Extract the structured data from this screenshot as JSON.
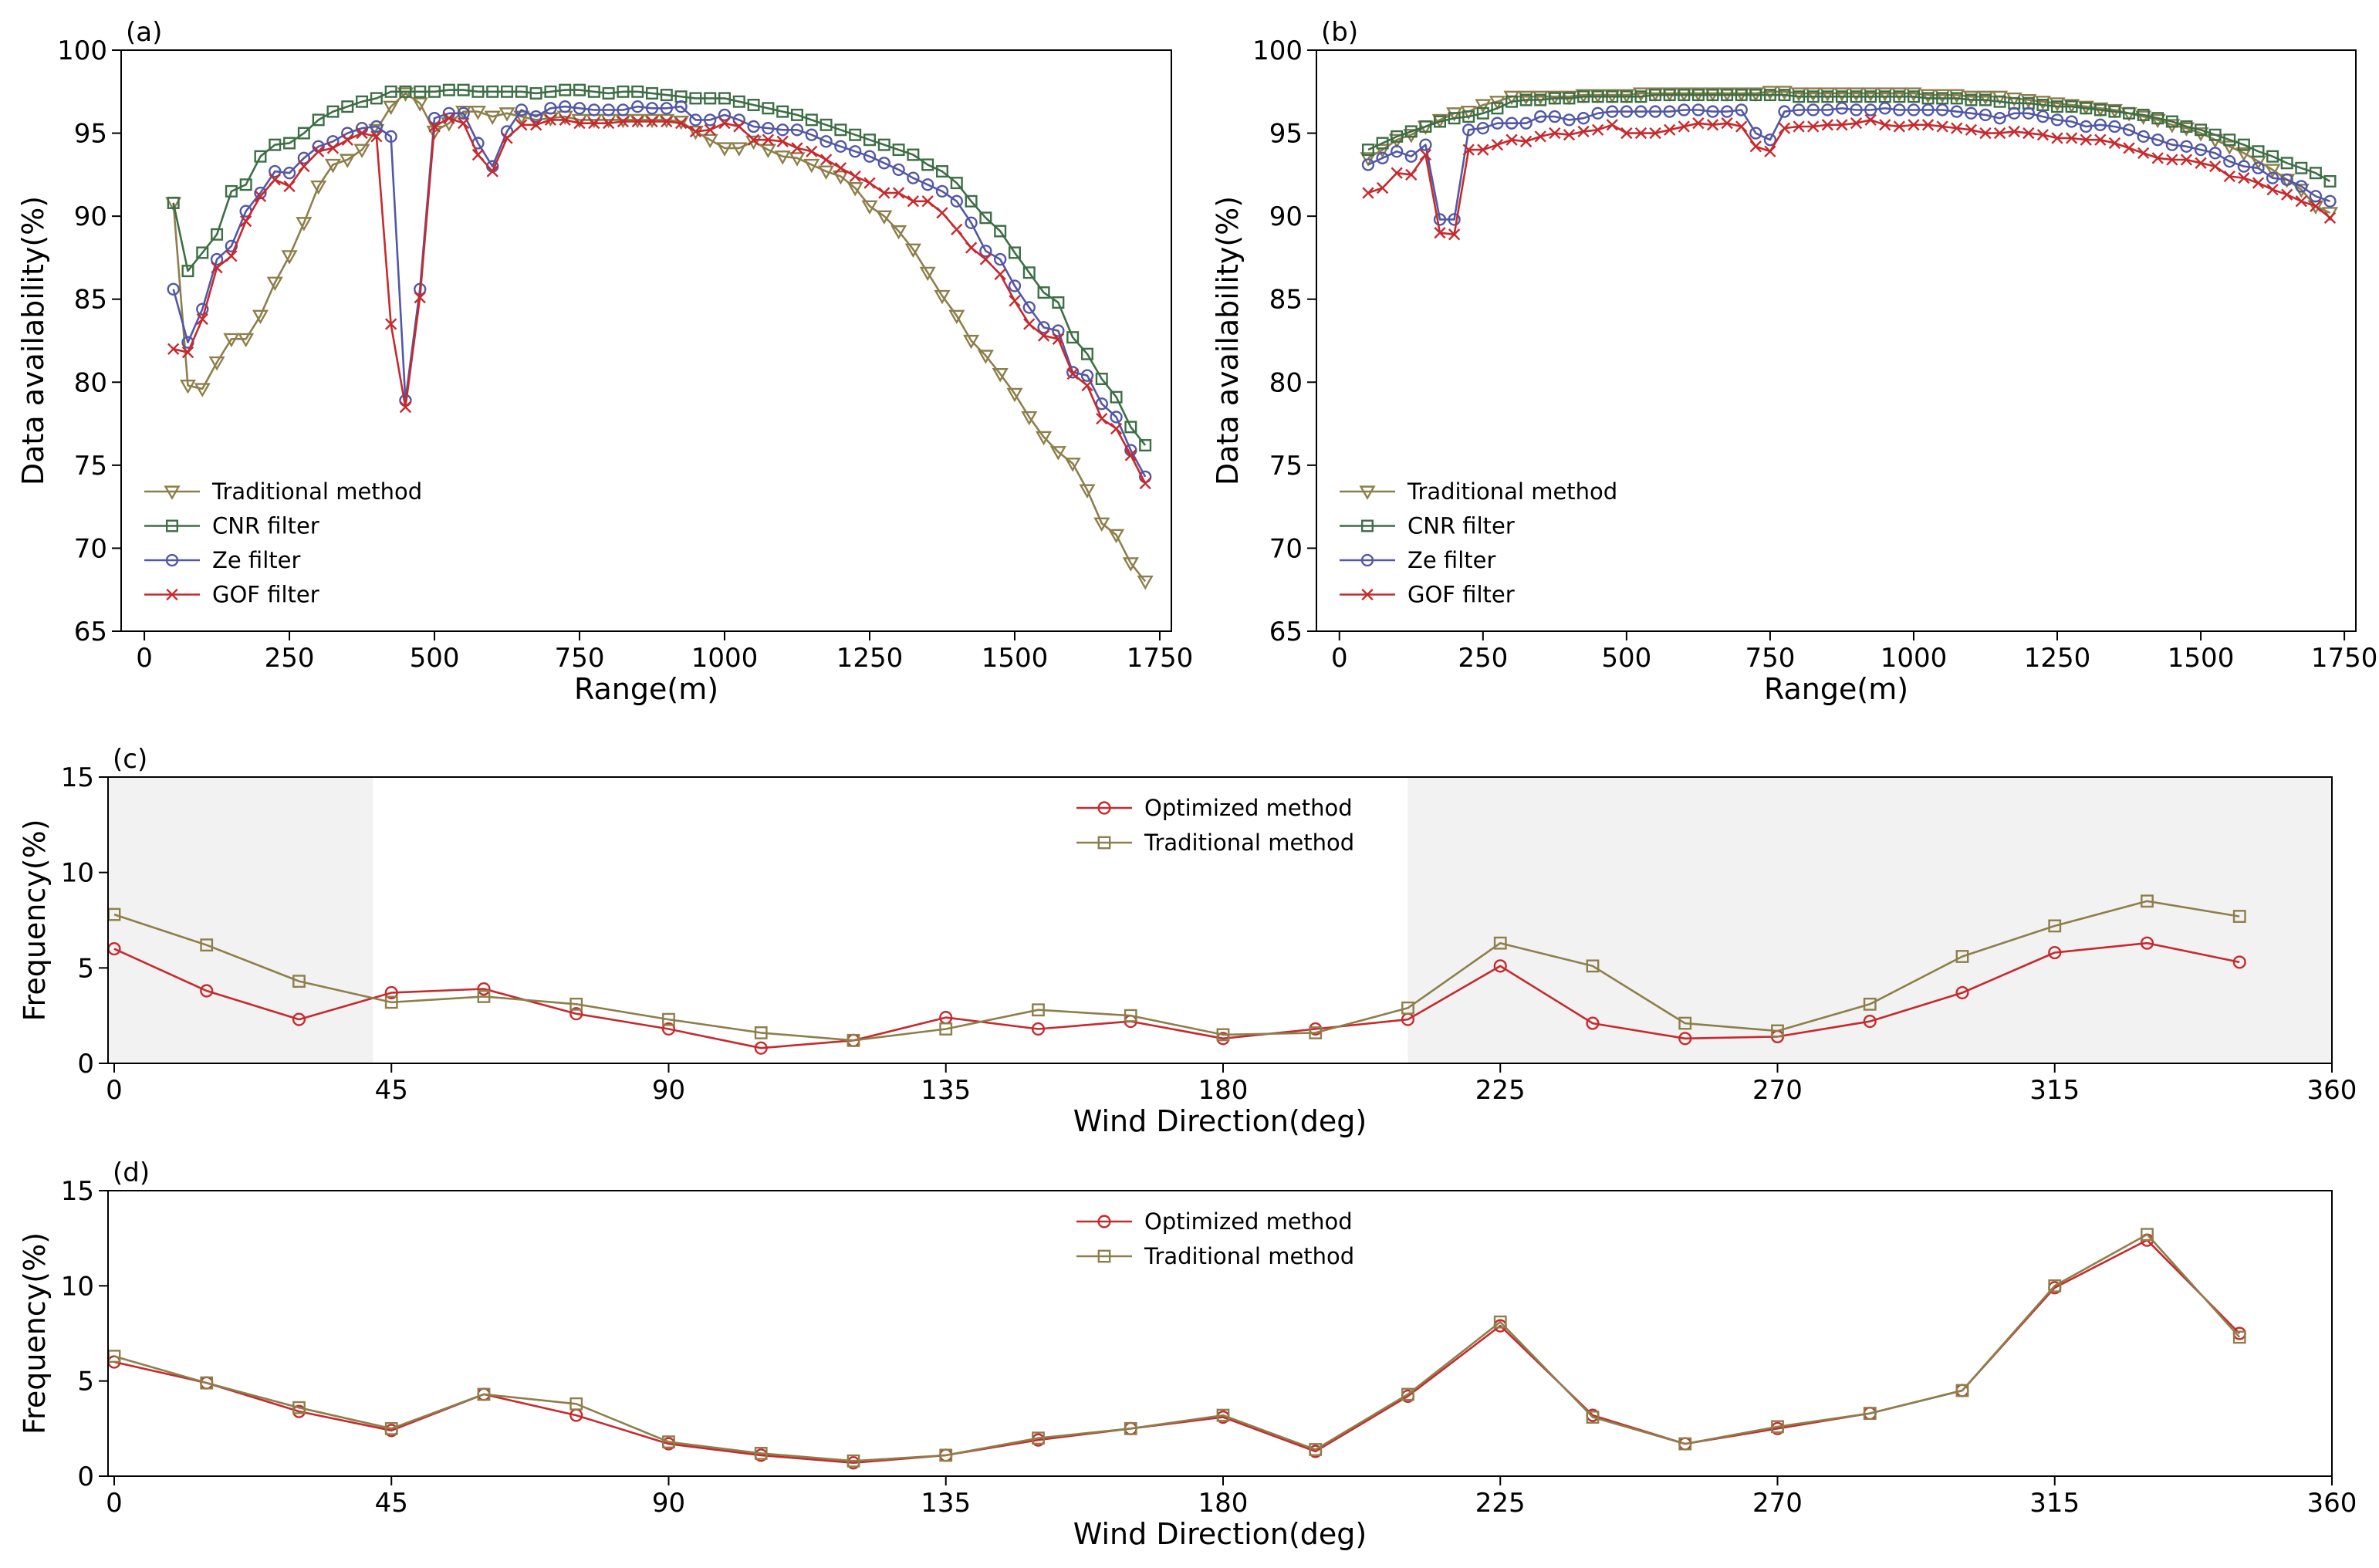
{
  "colors": {
    "traditional": "#8d7f4b",
    "cnr": "#3d6e45",
    "ze": "#5257a6",
    "gof": "#c62a2e",
    "shade": "#f2f2f2"
  },
  "chart_data": [
    {
      "panel": "(a)",
      "type": "line",
      "xlabel": "Range(m)",
      "ylabel": "Data availability(%)",
      "xlim": [
        -40,
        1770
      ],
      "ylim": [
        65,
        100
      ],
      "xticks": [
        0,
        250,
        500,
        750,
        1000,
        1250,
        1500,
        1750
      ],
      "yticks": [
        65,
        70,
        75,
        80,
        85,
        90,
        95,
        100
      ],
      "legend_position": "lower left",
      "grid": false,
      "x": [
        50,
        75,
        100,
        125,
        150,
        175,
        200,
        225,
        250,
        275,
        300,
        325,
        350,
        375,
        400,
        425,
        450,
        475,
        500,
        525,
        550,
        575,
        600,
        625,
        650,
        675,
        700,
        725,
        750,
        775,
        800,
        825,
        850,
        875,
        900,
        925,
        950,
        975,
        1000,
        1025,
        1050,
        1075,
        1100,
        1125,
        1150,
        1175,
        1200,
        1225,
        1250,
        1275,
        1300,
        1325,
        1350,
        1375,
        1400,
        1425,
        1450,
        1475,
        1500,
        1525,
        1550,
        1575,
        1600,
        1625,
        1650,
        1675,
        1700,
        1725
      ],
      "series": [
        {
          "name": "Traditional method",
          "marker": "triangle-down",
          "color_key": "traditional",
          "values": [
            90.8,
            79.8,
            79.6,
            81.2,
            82.6,
            82.6,
            84.0,
            86.0,
            87.6,
            89.6,
            91.8,
            93.1,
            93.4,
            94.0,
            95.2,
            96.6,
            97.4,
            96.8,
            95.1,
            95.6,
            96.3,
            96.3,
            96.0,
            96.2,
            96.0,
            95.8,
            95.9,
            96.0,
            95.8,
            95.8,
            95.8,
            95.8,
            95.8,
            95.8,
            95.8,
            95.7,
            95.1,
            94.6,
            94.1,
            94.1,
            94.5,
            94.0,
            93.6,
            93.5,
            93.1,
            92.7,
            92.4,
            91.7,
            90.6,
            90.0,
            89.1,
            88.0,
            86.6,
            85.2,
            84.0,
            82.5,
            81.6,
            80.5,
            79.3,
            77.9,
            76.7,
            75.8,
            75.1,
            73.5,
            71.5,
            70.8,
            69.1,
            68.0
          ]
        },
        {
          "name": "CNR filter",
          "marker": "square",
          "color_key": "cnr",
          "values": [
            90.8,
            86.7,
            87.8,
            88.9,
            91.5,
            91.9,
            93.6,
            94.3,
            94.4,
            95.0,
            95.8,
            96.3,
            96.6,
            96.9,
            97.1,
            97.5,
            97.5,
            97.5,
            97.5,
            97.6,
            97.6,
            97.5,
            97.5,
            97.5,
            97.5,
            97.4,
            97.5,
            97.6,
            97.6,
            97.5,
            97.4,
            97.5,
            97.5,
            97.4,
            97.3,
            97.2,
            97.1,
            97.1,
            97.1,
            96.9,
            96.7,
            96.5,
            96.3,
            96.1,
            95.8,
            95.5,
            95.2,
            94.9,
            94.6,
            94.3,
            94.0,
            93.7,
            93.1,
            92.7,
            92.0,
            90.9,
            89.9,
            89.1,
            87.8,
            86.6,
            85.4,
            84.8,
            82.7,
            81.7,
            80.2,
            79.1,
            77.3,
            76.2
          ]
        },
        {
          "name": "Ze filter",
          "marker": "circle",
          "color_key": "ze",
          "values": [
            85.6,
            82.4,
            84.4,
            87.4,
            88.2,
            90.3,
            91.4,
            92.7,
            92.6,
            93.5,
            94.2,
            94.5,
            95.0,
            95.3,
            95.4,
            94.8,
            78.9,
            85.6,
            95.9,
            96.2,
            96.2,
            94.4,
            93.0,
            95.1,
            96.4,
            96.0,
            96.5,
            96.6,
            96.5,
            96.4,
            96.4,
            96.4,
            96.6,
            96.5,
            96.5,
            96.6,
            95.8,
            95.8,
            96.1,
            95.8,
            95.4,
            95.3,
            95.2,
            95.2,
            94.9,
            94.5,
            94.2,
            93.9,
            93.6,
            93.2,
            92.8,
            92.3,
            91.9,
            91.5,
            90.9,
            89.6,
            87.9,
            87.4,
            85.8,
            84.5,
            83.3,
            83.1,
            80.6,
            80.4,
            78.7,
            77.9,
            75.9,
            74.3
          ]
        },
        {
          "name": "GOF filter",
          "marker": "x",
          "color_key": "gof",
          "values": [
            82.0,
            81.8,
            83.8,
            86.9,
            87.6,
            89.7,
            91.2,
            92.2,
            91.8,
            93.0,
            93.9,
            94.1,
            94.6,
            95.0,
            94.8,
            83.5,
            78.5,
            85.1,
            95.4,
            95.9,
            95.6,
            93.7,
            92.7,
            94.7,
            95.5,
            95.5,
            95.8,
            95.8,
            95.6,
            95.6,
            95.6,
            95.7,
            95.7,
            95.7,
            95.7,
            95.6,
            95.1,
            95.2,
            95.6,
            95.4,
            94.6,
            94.6,
            94.5,
            94.1,
            93.9,
            93.4,
            92.9,
            92.4,
            92.0,
            91.4,
            91.4,
            90.9,
            90.9,
            90.2,
            89.2,
            88.1,
            87.4,
            86.5,
            84.9,
            83.5,
            82.8,
            82.6,
            80.5,
            79.8,
            77.8,
            77.2,
            75.6,
            73.9
          ]
        }
      ]
    },
    {
      "panel": "(b)",
      "type": "line",
      "xlabel": "Range(m)",
      "ylabel": "Data availability(%)",
      "xlim": [
        -40,
        1770
      ],
      "ylim": [
        65,
        100
      ],
      "xticks": [
        0,
        250,
        500,
        750,
        1000,
        1250,
        1500,
        1750
      ],
      "yticks": [
        65,
        70,
        75,
        80,
        85,
        90,
        95,
        100
      ],
      "legend_position": "lower left",
      "grid": false,
      "x": [
        50,
        75,
        100,
        125,
        150,
        175,
        200,
        225,
        250,
        275,
        300,
        325,
        350,
        375,
        400,
        425,
        450,
        475,
        500,
        525,
        550,
        575,
        600,
        625,
        650,
        675,
        700,
        725,
        750,
        775,
        800,
        825,
        850,
        875,
        900,
        925,
        950,
        975,
        1000,
        1025,
        1050,
        1075,
        1100,
        1125,
        1150,
        1175,
        1200,
        1225,
        1250,
        1275,
        1300,
        1325,
        1350,
        1375,
        1400,
        1425,
        1450,
        1475,
        1500,
        1525,
        1550,
        1575,
        1600,
        1625,
        1650,
        1675,
        1700,
        1725
      ],
      "series": [
        {
          "name": "Traditional method",
          "marker": "triangle-down",
          "color_key": "traditional",
          "values": [
            93.5,
            94.0,
            94.6,
            94.9,
            95.4,
            95.8,
            96.2,
            96.3,
            96.7,
            96.9,
            97.2,
            97.2,
            97.2,
            97.2,
            97.2,
            97.3,
            97.3,
            97.3,
            97.3,
            97.4,
            97.4,
            97.4,
            97.4,
            97.4,
            97.4,
            97.4,
            97.4,
            97.4,
            97.5,
            97.5,
            97.4,
            97.4,
            97.4,
            97.4,
            97.4,
            97.4,
            97.4,
            97.4,
            97.4,
            97.3,
            97.3,
            97.3,
            97.2,
            97.2,
            97.2,
            97.1,
            97.0,
            96.9,
            96.8,
            96.7,
            96.6,
            96.5,
            96.4,
            96.2,
            96.0,
            95.8,
            95.5,
            95.3,
            95.0,
            94.6,
            94.2,
            93.8,
            93.3,
            92.8,
            92.2,
            91.6,
            90.6,
            90.2
          ]
        },
        {
          "name": "CNR filter",
          "marker": "square",
          "color_key": "cnr",
          "values": [
            94.0,
            94.4,
            94.8,
            95.1,
            95.4,
            95.7,
            95.9,
            96.0,
            96.2,
            96.5,
            96.9,
            97.0,
            97.0,
            97.1,
            97.1,
            97.2,
            97.2,
            97.2,
            97.2,
            97.2,
            97.3,
            97.3,
            97.3,
            97.3,
            97.3,
            97.3,
            97.3,
            97.3,
            97.3,
            97.3,
            97.2,
            97.2,
            97.2,
            97.2,
            97.2,
            97.2,
            97.2,
            97.2,
            97.2,
            97.1,
            97.1,
            97.1,
            97.0,
            97.0,
            96.9,
            96.8,
            96.8,
            96.7,
            96.6,
            96.6,
            96.5,
            96.4,
            96.3,
            96.2,
            96.1,
            95.9,
            95.7,
            95.4,
            95.2,
            94.9,
            94.6,
            94.3,
            93.9,
            93.6,
            93.2,
            92.9,
            92.6,
            92.1
          ]
        },
        {
          "name": "Ze filter",
          "marker": "circle",
          "color_key": "ze",
          "values": [
            93.1,
            93.5,
            93.9,
            93.6,
            94.3,
            89.8,
            89.8,
            95.2,
            95.3,
            95.6,
            95.6,
            95.6,
            96.0,
            96.0,
            95.8,
            95.9,
            96.2,
            96.3,
            96.3,
            96.3,
            96.3,
            96.3,
            96.4,
            96.4,
            96.3,
            96.3,
            96.4,
            95.0,
            94.6,
            96.3,
            96.4,
            96.4,
            96.4,
            96.5,
            96.4,
            96.4,
            96.5,
            96.4,
            96.4,
            96.4,
            96.4,
            96.3,
            96.2,
            96.1,
            95.9,
            96.2,
            96.2,
            96.0,
            95.8,
            95.7,
            95.4,
            95.5,
            95.4,
            95.2,
            94.8,
            94.6,
            94.3,
            94.2,
            94.0,
            93.8,
            93.3,
            93.0,
            92.9,
            92.3,
            92.2,
            91.8,
            91.2,
            90.9
          ]
        },
        {
          "name": "GOF filter",
          "marker": "x",
          "color_key": "gof",
          "values": [
            91.4,
            91.7,
            92.6,
            92.5,
            93.7,
            89.0,
            88.9,
            94.0,
            94.0,
            94.3,
            94.6,
            94.5,
            94.8,
            95.0,
            94.9,
            95.1,
            95.2,
            95.5,
            95.0,
            95.0,
            95.0,
            95.2,
            95.4,
            95.6,
            95.5,
            95.6,
            95.4,
            94.2,
            93.9,
            95.3,
            95.4,
            95.4,
            95.5,
            95.5,
            95.6,
            95.8,
            95.5,
            95.4,
            95.5,
            95.5,
            95.4,
            95.3,
            95.2,
            95.0,
            95.0,
            95.1,
            95.0,
            94.9,
            94.7,
            94.7,
            94.6,
            94.6,
            94.4,
            94.1,
            93.8,
            93.5,
            93.4,
            93.4,
            93.2,
            93.0,
            92.4,
            92.3,
            92.0,
            91.6,
            91.3,
            90.9,
            90.6,
            89.9
          ]
        }
      ]
    },
    {
      "panel": "(c)",
      "type": "line",
      "xlabel": "Wind Direction(deg)",
      "ylabel": "Frequency(%)",
      "xlim": [
        -1,
        360
      ],
      "ylim": [
        0,
        15
      ],
      "xticks": [
        0,
        45,
        90,
        135,
        180,
        225,
        270,
        315,
        360
      ],
      "yticks": [
        0,
        5,
        10,
        15
      ],
      "legend_position": "upper center",
      "grid": false,
      "shaded_ranges": [
        [
          -1,
          42
        ],
        [
          210,
          360
        ]
      ],
      "x": [
        0,
        15,
        30,
        45,
        60,
        75,
        90,
        105,
        120,
        135,
        150,
        165,
        180,
        195,
        210,
        225,
        240,
        255,
        270,
        285,
        300,
        315,
        330,
        345
      ],
      "series": [
        {
          "name": "Optimized method",
          "marker": "circle",
          "color_key": "gof",
          "values": [
            6.0,
            3.8,
            2.3,
            3.7,
            3.9,
            2.6,
            1.8,
            0.8,
            1.2,
            2.4,
            1.8,
            2.2,
            1.3,
            1.8,
            2.3,
            5.1,
            2.1,
            1.3,
            1.4,
            2.2,
            3.7,
            5.8,
            6.3,
            5.3
          ]
        },
        {
          "name": "Traditional method",
          "marker": "square",
          "color_key": "traditional",
          "values": [
            7.8,
            6.2,
            4.3,
            3.2,
            3.5,
            3.1,
            2.3,
            1.6,
            1.2,
            1.8,
            2.8,
            2.5,
            1.5,
            1.6,
            2.9,
            6.3,
            5.1,
            2.1,
            1.7,
            3.1,
            5.6,
            7.2,
            8.5,
            7.7
          ]
        }
      ]
    },
    {
      "panel": "(d)",
      "type": "line",
      "xlabel": "Wind Direction(deg)",
      "ylabel": "Frequency(%)",
      "xlim": [
        -1,
        360
      ],
      "ylim": [
        0,
        15
      ],
      "xticks": [
        0,
        45,
        90,
        135,
        180,
        225,
        270,
        315,
        360
      ],
      "yticks": [
        0,
        5,
        10,
        15
      ],
      "legend_position": "upper center",
      "grid": false,
      "x": [
        0,
        15,
        30,
        45,
        60,
        75,
        90,
        105,
        120,
        135,
        150,
        165,
        180,
        195,
        210,
        225,
        240,
        255,
        270,
        285,
        300,
        315,
        330,
        345
      ],
      "series": [
        {
          "name": "Optimized method",
          "marker": "circle",
          "color_key": "gof",
          "values": [
            6.0,
            4.9,
            3.4,
            2.4,
            4.3,
            3.2,
            1.7,
            1.1,
            0.7,
            1.1,
            1.9,
            2.5,
            3.1,
            1.3,
            4.2,
            7.9,
            3.2,
            1.7,
            2.5,
            3.3,
            4.5,
            9.9,
            12.4,
            7.5
          ]
        },
        {
          "name": "Traditional method",
          "marker": "square",
          "color_key": "traditional",
          "values": [
            6.3,
            4.9,
            3.6,
            2.5,
            4.3,
            3.8,
            1.8,
            1.2,
            0.8,
            1.1,
            2.0,
            2.5,
            3.2,
            1.4,
            4.3,
            8.1,
            3.1,
            1.7,
            2.6,
            3.3,
            4.5,
            10.0,
            12.7,
            7.3
          ]
        }
      ]
    }
  ]
}
